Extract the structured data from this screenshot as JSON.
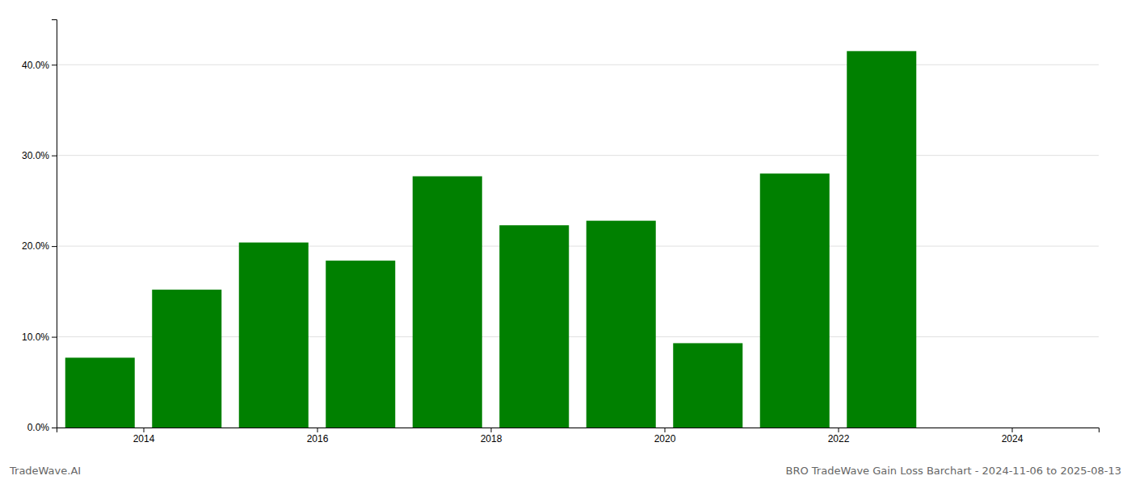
{
  "chart_data": {
    "type": "bar",
    "title": "BRO TradeWave Gain Loss Barchart - 2024-11-06 to 2025-08-13",
    "annotations": [
      "TradeWave.AI"
    ],
    "x": [
      2013.5,
      2014.5,
      2015.5,
      2016.5,
      2017.5,
      2018.5,
      2019.5,
      2020.5,
      2021.5,
      2022.5
    ],
    "values": [
      0.077,
      0.152,
      0.204,
      0.184,
      0.277,
      0.223,
      0.228,
      0.093,
      0.28,
      0.415
    ],
    "color": "#008000",
    "xlim": [
      2013.0,
      2025.0
    ],
    "xticks": [
      2014,
      2016,
      2018,
      2020,
      2022,
      2024
    ],
    "ylim": [
      0,
      0.45
    ],
    "yticks": [
      {
        "value": 0.0,
        "label": "0.0%"
      },
      {
        "value": 0.1,
        "label": "10.0%"
      },
      {
        "value": 0.2,
        "label": "20.0%"
      },
      {
        "value": 0.3,
        "label": "30.0%"
      },
      {
        "value": 0.4,
        "label": "40.0%"
      }
    ],
    "grid": true
  }
}
